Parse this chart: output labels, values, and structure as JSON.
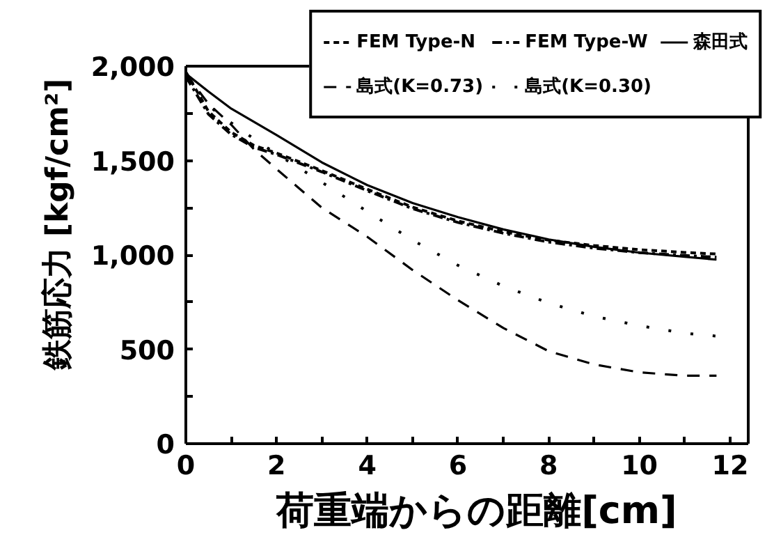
{
  "chart_data": {
    "type": "line",
    "xlabel": "荷重端からの距離[cm]",
    "ylabel": "鉄筋応力 [kgf/cm²]",
    "x": [
      0,
      0.5,
      1,
      1.5,
      2,
      3,
      4,
      5,
      6,
      7,
      8,
      9,
      10,
      11,
      11.7
    ],
    "series": [
      {
        "name": "FEM Type-N",
        "color": "#000000",
        "line_style": "dashed",
        "values": [
          1970,
          1760,
          1650,
          1580,
          1540,
          1447,
          1348,
          1253,
          1180,
          1123,
          1078,
          1050,
          1028,
          1013,
          1005
        ]
      },
      {
        "name": "FEM Type-W",
        "color": "#000000",
        "line_style": "dashdot",
        "values": [
          1945,
          1745,
          1638,
          1570,
          1532,
          1440,
          1340,
          1245,
          1172,
          1115,
          1068,
          1036,
          1012,
          997,
          988
        ]
      },
      {
        "name": "森田式",
        "color": "#000000",
        "line_style": "solid",
        "values": [
          1960,
          1865,
          1775,
          1705,
          1635,
          1490,
          1370,
          1275,
          1200,
          1135,
          1082,
          1043,
          1012,
          990,
          975
        ]
      },
      {
        "name": "島式(K=0.73)",
        "color": "#000000",
        "line_style": "longdash",
        "values": [
          1960,
          1800,
          1690,
          1560,
          1455,
          1250,
          1096,
          920,
          760,
          613,
          490,
          420,
          378,
          360,
          360
        ]
      },
      {
        "name": "島式(K=0.30)",
        "color": "#000000",
        "line_style": "dotted",
        "values": [
          1960,
          1790,
          1700,
          1615,
          1535,
          1385,
          1230,
          1078,
          945,
          835,
          745,
          675,
          625,
          585,
          570
        ]
      }
    ],
    "xlim": [
      0,
      12.4
    ],
    "ylim": [
      0,
      2000
    ],
    "xticks": [
      0,
      {
        "value": 1,
        "label": null
      },
      2,
      {
        "value": 3,
        "label": null
      },
      4,
      {
        "value": 5,
        "label": null
      },
      6,
      {
        "value": 7,
        "label": null
      },
      8,
      {
        "value": 9,
        "label": null
      },
      10,
      {
        "value": 11,
        "label": null
      },
      12
    ],
    "yticks": [
      0,
      {
        "value": 250,
        "label": null
      },
      500,
      {
        "value": 750,
        "label": null
      },
      {
        "value": 1000,
        "label": "1,000"
      },
      {
        "value": 1250,
        "label": null
      },
      {
        "value": 1500,
        "label": "1,500"
      },
      {
        "value": 1750,
        "label": null
      },
      {
        "value": 2000,
        "label": "2,000"
      }
    ],
    "legend": "top right"
  }
}
